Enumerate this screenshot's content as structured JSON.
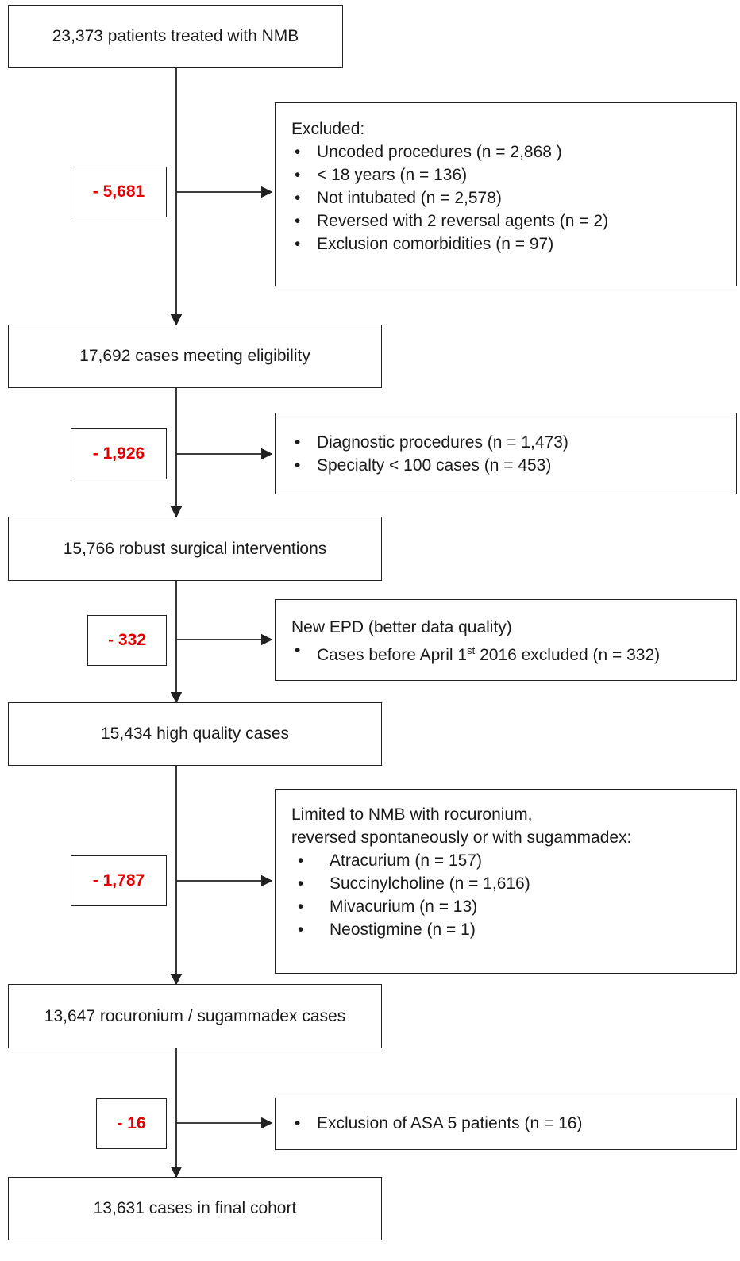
{
  "steps": [
    "23,373 patients treated with NMB",
    "17,692 cases meeting eligibility",
    "15,766 robust surgical interventions",
    "15,434 high quality cases",
    "13,647 rocuronium / sugammadex  cases",
    "13,631 cases in final cohort"
  ],
  "removed": [
    "- 5,681",
    "- 1,926",
    "- 332",
    "- 1,787",
    "- 16"
  ],
  "exclusions": [
    {
      "heading": "Excluded:",
      "items": [
        "Uncoded procedures (n = 2,868   )",
        "< 18 years (n = 136)",
        "Not intubated (n = 2,578)",
        "Reversed with 2 reversal agents (n = 2)",
        "Exclusion comorbidities (n = 97)"
      ]
    },
    {
      "items": [
        "Diagnostic procedures (n = 1,473)",
        "Specialty < 100 cases (n = 453)"
      ]
    },
    {
      "heading": "New EPD (better data quality)",
      "item_parts": {
        "before": "Cases before April 1",
        "superscript": "st",
        "after": " 2016 excluded (n = 332)"
      }
    },
    {
      "heading_lines": [
        "Limited to NMB with rocuronium,",
        "reversed spontaneously or with sugammadex:"
      ],
      "items": [
        "Atracurium (n = 157)",
        "Succinylcholine (n = 1,616)",
        "Mivacurium (n = 13)",
        "Neostigmine (n = 1)"
      ]
    },
    {
      "items": [
        "Exclusion of ASA 5 patients (n = 16)"
      ]
    }
  ],
  "bullet": "•",
  "colors": {
    "removed_text": "#e00000",
    "lines": "#222222"
  }
}
